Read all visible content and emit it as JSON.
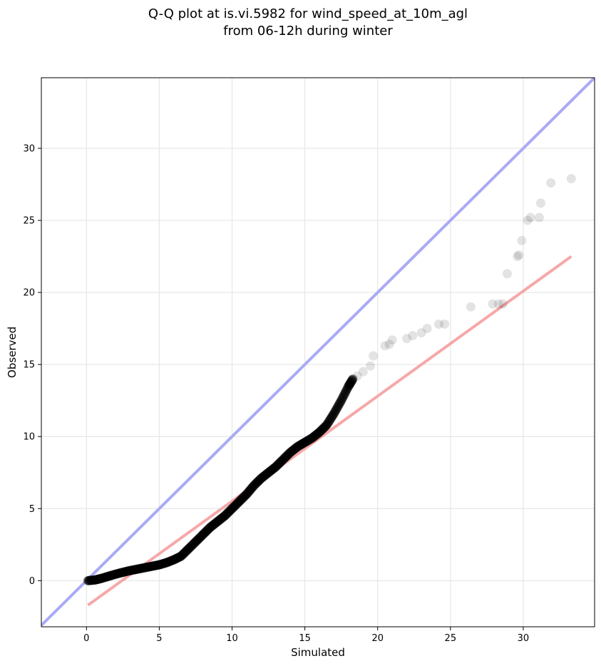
{
  "chart_data": {
    "type": "scatter",
    "title_line1": "Q-Q plot at is.vi.5982 for wind_speed_at_10m_agl",
    "title_line2": "from 06-12h during winter",
    "xlabel": "Simulated",
    "ylabel": "Observed",
    "xlim": [
      -3.1,
      34.9
    ],
    "ylim": [
      -3.2,
      34.9
    ],
    "xticks": [
      0,
      5,
      10,
      15,
      20,
      25,
      30
    ],
    "yticks": [
      0,
      5,
      10,
      15,
      20,
      25,
      30
    ],
    "grid": true,
    "reference_lines": [
      {
        "kind": "identity",
        "x": [
          -3.1,
          34.9
        ],
        "y": [
          -3.1,
          34.9
        ],
        "color": "#aaaaf5"
      },
      {
        "kind": "fit",
        "x": [
          0.1,
          33.3
        ],
        "y": [
          -1.7,
          22.5
        ],
        "color": "#f6a8a8"
      }
    ],
    "point_color": "#000000",
    "dense_curve": [
      [
        0.1,
        0.0
      ],
      [
        0.6,
        0.05
      ],
      [
        1.0,
        0.15
      ],
      [
        1.5,
        0.3
      ],
      [
        2.0,
        0.45
      ],
      [
        2.5,
        0.58
      ],
      [
        3.0,
        0.7
      ],
      [
        3.5,
        0.8
      ],
      [
        4.0,
        0.9
      ],
      [
        4.5,
        1.0
      ],
      [
        5.0,
        1.1
      ],
      [
        5.5,
        1.25
      ],
      [
        6.0,
        1.45
      ],
      [
        6.5,
        1.7
      ],
      [
        7.0,
        2.2
      ],
      [
        7.5,
        2.7
      ],
      [
        8.0,
        3.2
      ],
      [
        8.5,
        3.7
      ],
      [
        9.0,
        4.1
      ],
      [
        9.5,
        4.5
      ],
      [
        10.0,
        5.0
      ],
      [
        10.5,
        5.5
      ],
      [
        11.0,
        6.0
      ],
      [
        11.5,
        6.6
      ],
      [
        12.0,
        7.1
      ],
      [
        12.5,
        7.5
      ],
      [
        13.0,
        7.9
      ],
      [
        13.5,
        8.4
      ],
      [
        14.0,
        8.9
      ],
      [
        14.5,
        9.3
      ],
      [
        15.0,
        9.6
      ],
      [
        15.5,
        9.9
      ],
      [
        16.0,
        10.3
      ],
      [
        16.5,
        10.8
      ],
      [
        17.0,
        11.6
      ],
      [
        17.5,
        12.5
      ],
      [
        18.0,
        13.5
      ],
      [
        18.3,
        14.0
      ]
    ],
    "tail_points": [
      [
        18.6,
        14.2
      ],
      [
        19.0,
        14.5
      ],
      [
        19.5,
        14.9
      ],
      [
        19.7,
        15.6
      ],
      [
        20.5,
        16.3
      ],
      [
        20.8,
        16.4
      ],
      [
        21.0,
        16.7
      ],
      [
        22.0,
        16.8
      ],
      [
        22.4,
        17.0
      ],
      [
        23.0,
        17.2
      ],
      [
        23.4,
        17.5
      ],
      [
        24.2,
        17.8
      ],
      [
        24.6,
        17.8
      ],
      [
        26.4,
        19.0
      ],
      [
        27.9,
        19.2
      ],
      [
        28.3,
        19.2
      ],
      [
        28.6,
        19.2
      ],
      [
        28.9,
        21.3
      ],
      [
        29.6,
        22.5
      ],
      [
        29.7,
        22.6
      ],
      [
        29.9,
        23.6
      ],
      [
        30.3,
        25.0
      ],
      [
        30.5,
        25.2
      ],
      [
        31.1,
        25.2
      ],
      [
        31.2,
        26.2
      ],
      [
        31.9,
        27.6
      ],
      [
        33.3,
        27.9
      ]
    ]
  }
}
